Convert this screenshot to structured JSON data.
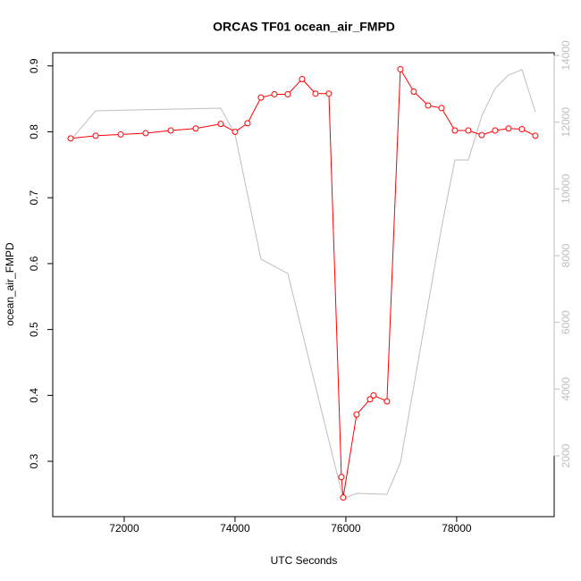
{
  "chart_data": {
    "type": "line",
    "title": "ORCAS TF01 ocean_air_FMPD",
    "xlabel": "UTC Seconds",
    "ylabel": "ocean_air_FMPD",
    "xlim": [
      70710,
      79760
    ],
    "ylim": [
      0.216,
      0.92
    ],
    "y2lim": [
      178,
      14080
    ],
    "xticks": [
      72000,
      74000,
      76000,
      78000
    ],
    "yticks": [
      0.3,
      0.4,
      0.5,
      0.6,
      0.7,
      0.8,
      0.9
    ],
    "y2ticks": [
      2000,
      4000,
      6000,
      8000,
      10000,
      12000,
      14000
    ],
    "y2color": "#bebebe",
    "series": [
      {
        "color": "#bebebe",
        "axis": "y2",
        "marker": "none",
        "x": [
          71033,
          71484,
          73742,
          74000,
          74468,
          74952,
          75952,
          76194,
          76742,
          76984,
          77726,
          77968,
          78210,
          78452,
          78694,
          78936,
          79178,
          79420
        ],
        "values": [
          11456,
          12340,
          12420,
          11640,
          7893,
          7465,
          714,
          875,
          848,
          1786,
          8831,
          10867,
          10867,
          12180,
          13010,
          13412,
          13573,
          12313
        ]
      },
      {
        "color": "#ff0000",
        "axis": "y",
        "marker": "circle",
        "x": [
          71033,
          71484,
          71936,
          72387,
          72839,
          73290,
          73742,
          74000,
          74226,
          74468,
          74710,
          74952,
          75210,
          75452,
          75694,
          75920,
          75952,
          76194,
          76436,
          76500,
          76742,
          76984,
          77226,
          77484,
          77726,
          77968,
          78210,
          78452,
          78694,
          78936,
          79178,
          79420
        ],
        "values": [
          0.79,
          0.794,
          0.796,
          0.798,
          0.802,
          0.805,
          0.812,
          0.8,
          0.813,
          0.852,
          0.857,
          0.857,
          0.88,
          0.858,
          0.858,
          0.276,
          0.245,
          0.371,
          0.394,
          0.4,
          0.391,
          0.895,
          0.861,
          0.84,
          0.836,
          0.802,
          0.802,
          0.795,
          0.802,
          0.805,
          0.804,
          0.794
        ]
      }
    ]
  }
}
